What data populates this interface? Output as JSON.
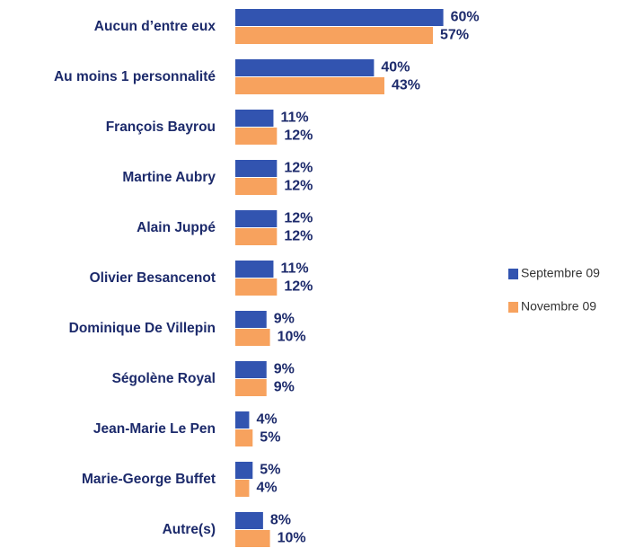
{
  "chart_data": {
    "type": "hbar",
    "categories": [
      "Aucun d’entre eux",
      "Au moins 1 personnalité",
      "François Bayrou",
      "Martine Aubry",
      "Alain Juppé",
      "Olivier Besancenot",
      "Dominique De Villepin",
      "Ségolène Royal",
      "Jean-Marie Le Pen",
      "Marie-George  Buffet",
      "Autre(s)"
    ],
    "series": [
      {
        "name": "Septembre 09",
        "color": "#3254b0",
        "values": [
          60,
          40,
          11,
          12,
          12,
          11,
          9,
          9,
          4,
          5,
          8
        ],
        "value_labels": [
          "60%",
          "40%",
          "11%",
          "12%",
          "12%",
          "11%",
          "9%",
          "9%",
          "4%",
          "5%",
          "8%"
        ]
      },
      {
        "name": "Novembre 09",
        "color": "#f7a25e",
        "values": [
          57,
          43,
          12,
          12,
          12,
          12,
          10,
          9,
          5,
          4,
          10
        ],
        "value_labels": [
          "57%",
          "43%",
          "12%",
          "12%",
          "12%",
          "12%",
          "10%",
          "9%",
          "5%",
          "4%",
          "10%"
        ]
      }
    ],
    "legend": "right"
  }
}
